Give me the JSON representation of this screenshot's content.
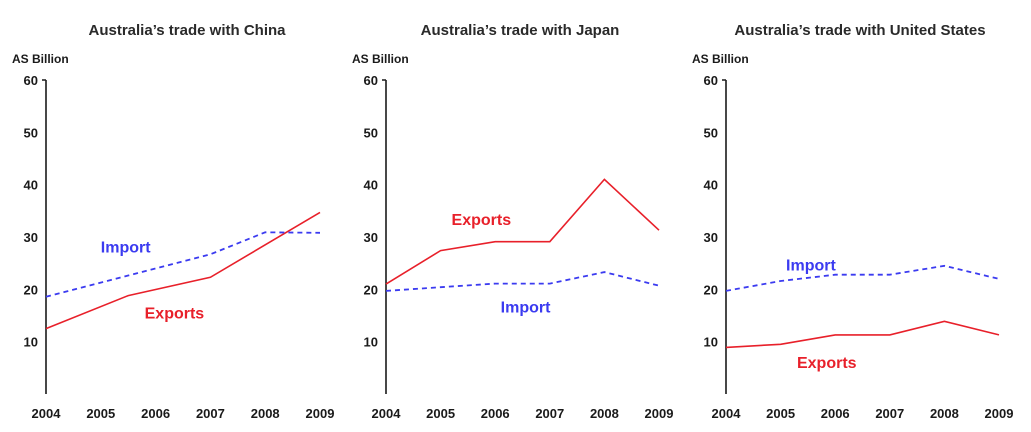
{
  "chart_data": [
    {
      "type": "line",
      "title": "Australia’s trade with China",
      "ylabel": "AS Billion",
      "xlabel": "",
      "x": [
        2004,
        2005,
        2006,
        2007,
        2008,
        2009
      ],
      "x_ticks": [
        "2004",
        "2005",
        "2006",
        "2007",
        "2008",
        "2009"
      ],
      "y_ticks": [
        "10",
        "20",
        "30",
        "40",
        "50",
        "60"
      ],
      "ylim": [
        0,
        60
      ],
      "grid": false,
      "series": [
        {
          "name": "Exports",
          "color": "#e8202a",
          "dash": "solid",
          "x": [
            2004,
            2005.5,
            2007,
            2009
          ],
          "y": [
            12.5,
            18.8,
            22.3,
            34.7
          ]
        },
        {
          "name": "Import",
          "color": "#3b3bf0",
          "dash": "dashed",
          "x": [
            2004,
            2007,
            2008,
            2009
          ],
          "y": [
            18.6,
            26.7,
            30.9,
            30.8
          ]
        }
      ],
      "annotations": [
        {
          "series": "Import",
          "text": "Import",
          "x": 2005.0,
          "y": 27.0
        },
        {
          "series": "Exports",
          "text": "Exports",
          "x": 2005.8,
          "y": 14.4
        }
      ]
    },
    {
      "type": "line",
      "title": "Australia’s trade with Japan",
      "ylabel": "AS Billion",
      "xlabel": "",
      "x": [
        2004,
        2005,
        2006,
        2007,
        2008,
        2009
      ],
      "x_ticks": [
        "2004",
        "2005",
        "2006",
        "2007",
        "2008",
        "2009"
      ],
      "y_ticks": [
        "10",
        "20",
        "30",
        "40",
        "50",
        "60"
      ],
      "ylim": [
        0,
        60
      ],
      "grid": false,
      "series": [
        {
          "name": "Exports",
          "color": "#e8202a",
          "dash": "solid",
          "x": [
            2004,
            2005,
            2006,
            2007,
            2008,
            2009
          ],
          "y": [
            21.0,
            27.4,
            29.1,
            29.1,
            41.0,
            31.3
          ]
        },
        {
          "name": "Import",
          "color": "#3b3bf0",
          "dash": "dashed",
          "x": [
            2004,
            2005,
            2006,
            2007,
            2008,
            2009
          ],
          "y": [
            19.7,
            20.4,
            21.1,
            21.1,
            23.3,
            20.7
          ]
        }
      ],
      "annotations": [
        {
          "series": "Exports",
          "text": "Exports",
          "x": 2005.2,
          "y": 32.3
        },
        {
          "series": "Import",
          "text": "Import",
          "x": 2006.1,
          "y": 15.6
        }
      ]
    },
    {
      "type": "line",
      "title": "Australia’s trade with United States",
      "ylabel": "AS Billion",
      "xlabel": "",
      "x": [
        2004,
        2005,
        2006,
        2007,
        2008,
        2009
      ],
      "x_ticks": [
        "2004",
        "2005",
        "2006",
        "2007",
        "2008",
        "2009"
      ],
      "y_ticks": [
        "10",
        "20",
        "30",
        "40",
        "50",
        "60"
      ],
      "ylim": [
        0,
        60
      ],
      "grid": false,
      "series": [
        {
          "name": "Exports",
          "color": "#e8202a",
          "dash": "solid",
          "x": [
            2004,
            2005,
            2006,
            2007,
            2008,
            2009
          ],
          "y": [
            8.9,
            9.5,
            11.3,
            11.3,
            13.9,
            11.3
          ]
        },
        {
          "name": "Import",
          "color": "#3b3bf0",
          "dash": "dashed",
          "x": [
            2004,
            2005,
            2006,
            2007,
            2008,
            2009
          ],
          "y": [
            19.7,
            21.6,
            22.8,
            22.8,
            24.5,
            22.0
          ]
        }
      ],
      "annotations": [
        {
          "series": "Import",
          "text": "Import",
          "x": 2005.1,
          "y": 23.6
        },
        {
          "series": "Exports",
          "text": "Exports",
          "x": 2005.3,
          "y": 5.0
        }
      ]
    }
  ]
}
